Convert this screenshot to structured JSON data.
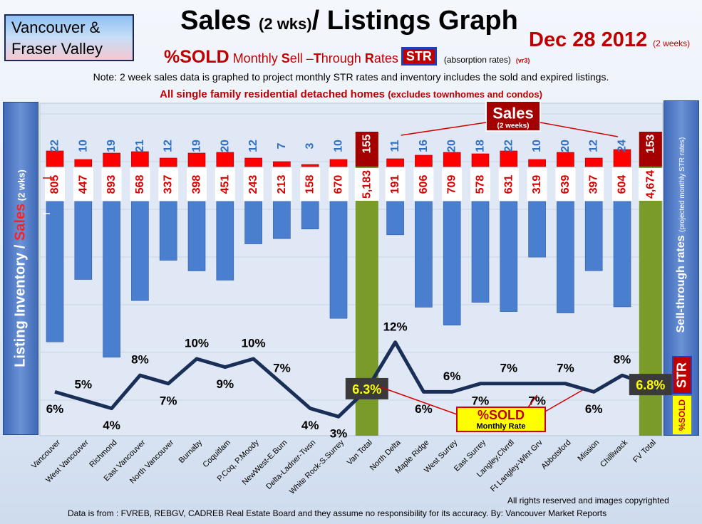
{
  "region": {
    "line1": "Vancouver &",
    "line2": "Fraser Valley"
  },
  "title": {
    "main_a": "Sales ",
    "main_small": "(2 wks)",
    "main_b": "/ Listings Graph"
  },
  "date": {
    "text": "Dec 28 2012",
    "small": "(2 weeks)"
  },
  "subtitle": {
    "sold": "%SOLD",
    "part1": " Monthly ",
    "S": "S",
    "part2": "ell –",
    "T": "T",
    "part3": "hrough ",
    "R": "R",
    "part4": "ates",
    "str": "STR",
    "abs_note": "(absorption rates)",
    "vr": "(vr3)"
  },
  "note": "Note: 2 week sales data is graphed to project monthly STR rates and inventory includes the sold and expired listings.",
  "subtitle2": {
    "main": "All single family residential detached homes ",
    "small": "(excludes townhomes and condos)"
  },
  "left_label": {
    "part1": "Listing Inventory / ",
    "sales": "Sales",
    "small": " (2 wks)"
  },
  "right_label": {
    "main": "Sell-through rates ",
    "small": "(projected monthly STR rates)"
  },
  "side_str": "STR",
  "side_sold": "%SOLD",
  "callouts": {
    "sales_main": "Sales",
    "sales_sub": "(2 weeks)",
    "sold_main": "%SOLD",
    "sold_sub": "Monthly Rate"
  },
  "colors": {
    "bar_blue": "#4a7fd0",
    "total_green": "#7a9a2a",
    "sales_red": "#ff0000",
    "sales_dark": "#a40000",
    "line": "#1a2f58",
    "str_badge": "#3a3a3a"
  },
  "footer": {
    "rights": "All rights reserved and  images copyrighted",
    "source": "Data is from : FVREB, REBGV, CADREB Real Estate Board and they assume no responsibility for its accuracy. By: Vancouver Market Reports"
  },
  "chart_data": {
    "type": "bar",
    "categories": [
      "Vancouver",
      "West Vancouver",
      "Richmond",
      "East Vancouver",
      "North Vancouver",
      "Burnaby",
      "Coquitlam",
      "P.Coq, P.Moody",
      "NewWest-E.Burn",
      "Delta-Ladner-Twsn",
      "White Rock-S.Surrey",
      "Van Total",
      "North Delta",
      "Maple Ridge",
      "West Surrey",
      "East Surrey",
      "Langley,Clvrdl",
      "Ft Langley-Wlnt Grv",
      "Abbotsford",
      "Mission",
      "Chilliwack",
      "FV Total"
    ],
    "series": [
      {
        "name": "Sales",
        "values": [
          22,
          10,
          19,
          21,
          12,
          19,
          20,
          12,
          7,
          3,
          10,
          155,
          11,
          16,
          20,
          18,
          22,
          10,
          20,
          12,
          24,
          153
        ]
      },
      {
        "name": "Listing Inventory",
        "values": [
          805,
          447,
          893,
          568,
          337,
          398,
          451,
          243,
          213,
          158,
          670,
          5183,
          191,
          606,
          709,
          578,
          631,
          319,
          639,
          397,
          604,
          4674
        ]
      },
      {
        "name": "%SOLD",
        "values": [
          6,
          5,
          4,
          8,
          7,
          10,
          9,
          10,
          7,
          4,
          3,
          6.3,
          12,
          6,
          6,
          7,
          7,
          7,
          7,
          6,
          8,
          6.8
        ]
      }
    ],
    "sales_labels": [
      "22",
      "10",
      "19",
      "21",
      "12",
      "19",
      "20",
      "12",
      "7",
      "3",
      "10",
      "155",
      "11",
      "16",
      "20",
      "18",
      "22",
      "10",
      "20",
      "12",
      "24",
      "153"
    ],
    "inventory_labels": [
      "805",
      "447",
      "893",
      "568",
      "337",
      "398",
      "451",
      "243",
      "213",
      "158",
      "670",
      "5,183",
      "191",
      "606",
      "709",
      "578",
      "631",
      "319",
      "639",
      "397",
      "604",
      "4,674"
    ],
    "pct_labels": [
      "6%",
      "5%",
      "4%",
      "8%",
      "7%",
      "10%",
      "9%",
      "10%",
      "7%",
      "4%",
      "3%",
      "6.3%",
      "12%",
      "6%",
      "6%",
      "7%",
      "7%",
      "7%",
      "7%",
      "6%",
      "8%",
      "6.8%"
    ],
    "totals_index": [
      11,
      21
    ],
    "title": "Sales (2 wks)/ Listings Graph"
  }
}
